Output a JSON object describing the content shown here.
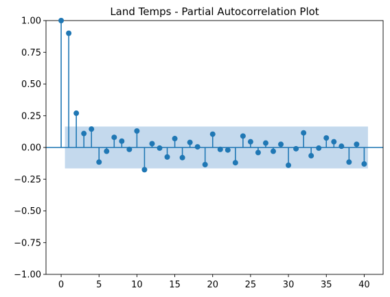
{
  "chart_data": {
    "type": "stem",
    "title": "Land Temps - Partial Autocorrelation Plot",
    "xlabel": "",
    "ylabel": "",
    "xlim": [
      -2,
      42.5
    ],
    "ylim": [
      -1.0,
      1.0
    ],
    "x_ticks": [
      0,
      5,
      10,
      15,
      20,
      25,
      30,
      35,
      40
    ],
    "y_ticks": [
      -1.0,
      -0.75,
      -0.5,
      -0.25,
      0.0,
      0.25,
      0.5,
      0.75,
      1.0
    ],
    "x_tick_labels": [
      "0",
      "5",
      "10",
      "15",
      "20",
      "25",
      "30",
      "35",
      "40"
    ],
    "y_tick_labels": [
      "−1.00",
      "−0.75",
      "−0.50",
      "−0.25",
      "0.00",
      "0.25",
      "0.50",
      "0.75",
      "1.00"
    ],
    "confidence_band": {
      "x_start": 0.5,
      "x_end": 40.5,
      "upper": 0.165,
      "lower": -0.165,
      "color": "#c4d9ed"
    },
    "series": [
      {
        "color": "#1f77b4",
        "lags": [
          0,
          1,
          2,
          3,
          4,
          5,
          6,
          7,
          8,
          9,
          10,
          11,
          12,
          13,
          14,
          15,
          16,
          17,
          18,
          19,
          20,
          21,
          22,
          23,
          24,
          25,
          26,
          27,
          28,
          29,
          30,
          31,
          32,
          33,
          34,
          35,
          36,
          37,
          38,
          39,
          40
        ],
        "values": [
          1.0,
          0.9,
          0.27,
          0.11,
          0.145,
          -0.115,
          -0.03,
          0.08,
          0.05,
          -0.015,
          0.13,
          -0.175,
          0.03,
          -0.005,
          -0.075,
          0.07,
          -0.08,
          0.04,
          0.005,
          -0.135,
          0.105,
          -0.015,
          -0.02,
          -0.12,
          0.09,
          0.045,
          -0.04,
          0.035,
          -0.03,
          0.025,
          -0.14,
          -0.01,
          0.115,
          -0.065,
          -0.005,
          0.075,
          0.045,
          0.01,
          -0.115,
          0.025,
          -0.13
        ]
      }
    ],
    "grid": false,
    "zero_line": true
  }
}
